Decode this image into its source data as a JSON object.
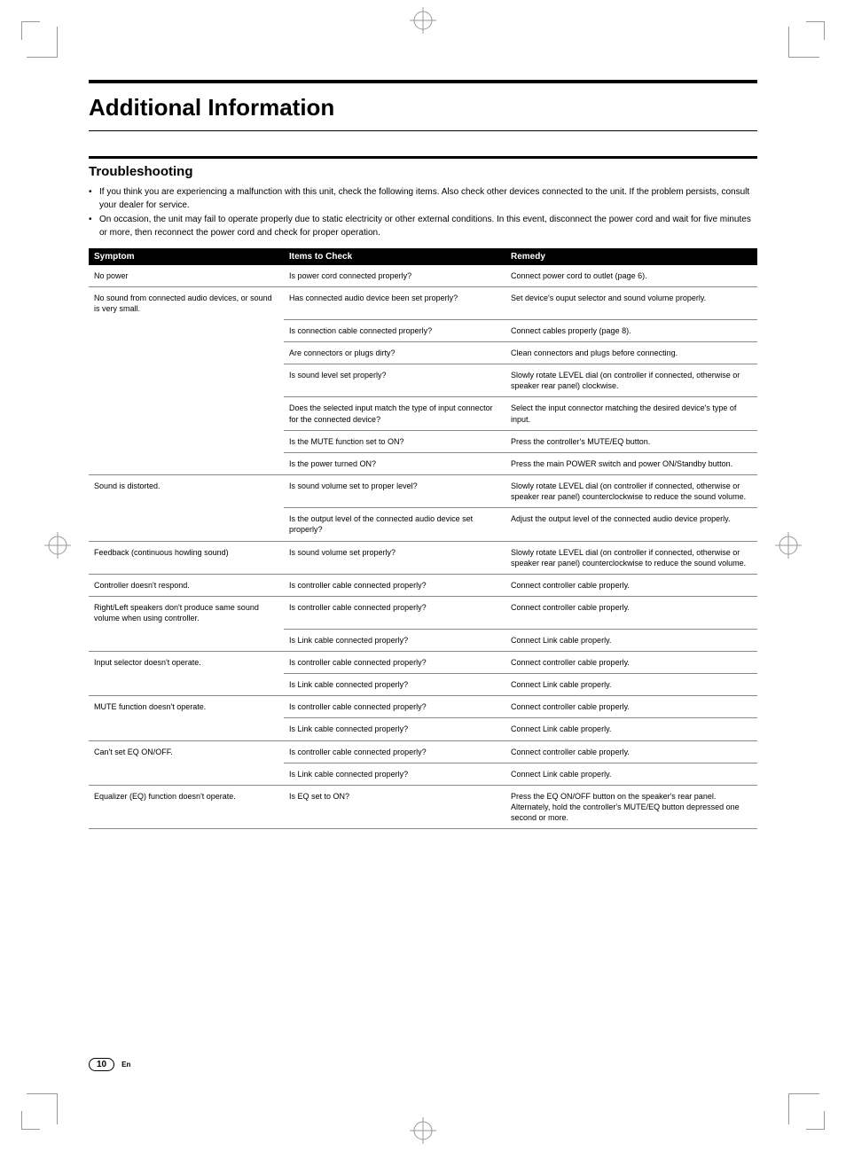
{
  "page": {
    "title": "Additional Information",
    "subtitle": "Troubleshooting",
    "bullets": [
      "If you think you are experiencing a malfunction with this unit, check the following items. Also check other devices connected to the unit. If the problem persists, consult your dealer for service.",
      "On occasion, the unit may fail to operate properly due to static electricity or other external conditions. In this event, disconnect the power cord and wait for five minutes or more, then reconnect the power cord and check for proper operation."
    ],
    "headers": {
      "symptom": "Symptom",
      "check": "Items to Check",
      "remedy": "Remedy"
    },
    "rows": [
      {
        "symptom": "No power",
        "check": "Is power cord connected properly?",
        "remedy": "Connect power cord to outlet (page 6).",
        "first": true,
        "last": true
      },
      {
        "symptom": "No sound from connected audio devices, or sound is very small.",
        "check": "Has connected audio device been set properly?",
        "remedy": "Set device's ouput selector and sound volume properly.",
        "first": true
      },
      {
        "symptom": "",
        "check": "Is connection cable connected properly?",
        "remedy": "Connect cables properly (page 8)."
      },
      {
        "symptom": "",
        "check": "Are connectors or plugs dirty?",
        "remedy": "Clean connectors and plugs before connecting."
      },
      {
        "symptom": "",
        "check": "Is sound level set properly?",
        "remedy": "Slowly rotate LEVEL dial (on controller if connected, otherwise or speaker rear panel) clockwise."
      },
      {
        "symptom": "",
        "check": "Does the selected input match the type of input connector for the connected device?",
        "remedy": "Select the input connector matching the desired device's type of input."
      },
      {
        "symptom": "",
        "check": "Is the MUTE function set to ON?",
        "remedy": "Press the controller's MUTE/EQ button."
      },
      {
        "symptom": "",
        "check": "Is the power turned ON?",
        "remedy": "Press the main POWER switch and power ON/Standby button.",
        "last": true
      },
      {
        "symptom": "Sound is distorted.",
        "check": "Is sound volume set to proper level?",
        "remedy": "Slowly rotate LEVEL dial (on controller if connected, otherwise or speaker rear panel) counterclockwise to reduce the sound volume.",
        "first": true
      },
      {
        "symptom": "",
        "check": "Is the output level of the connected audio device set properly?",
        "remedy": "Adjust the output level of the connected audio device properly.",
        "last": true
      },
      {
        "symptom": "Feedback (continuous howling sound)",
        "check": "Is sound volume set properly?",
        "remedy": "Slowly rotate LEVEL dial (on controller if connected, otherwise or speaker rear panel) counterclockwise to reduce the sound volume.",
        "first": true,
        "last": true
      },
      {
        "symptom": "Controller doesn't respond.",
        "check": "Is controller cable connected properly?",
        "remedy": "Connect controller cable properly.",
        "first": true,
        "last": true
      },
      {
        "symptom": "Right/Left speakers don't produce same sound volume when using controller.",
        "check": "Is controller cable connected properly?",
        "remedy": "Connect controller cable properly.",
        "first": true
      },
      {
        "symptom": "",
        "check": "Is Link cable connected properly?",
        "remedy": "Connect Link cable properly.",
        "last": true
      },
      {
        "symptom": "Input selector doesn't operate.",
        "check": "Is controller cable connected properly?",
        "remedy": "Connect controller cable properly.",
        "first": true
      },
      {
        "symptom": "",
        "check": "Is Link cable connected properly?",
        "remedy": "Connect Link cable properly.",
        "last": true
      },
      {
        "symptom": "MUTE function doesn't operate.",
        "check": "Is controller cable connected properly?",
        "remedy": "Connect controller cable properly.",
        "first": true
      },
      {
        "symptom": "",
        "check": "Is Link cable connected properly?",
        "remedy": "Connect Link cable properly.",
        "last": true
      },
      {
        "symptom": "Can't set EQ ON/OFF.",
        "check": "Is controller cable connected properly?",
        "remedy": "Connect controller cable properly.",
        "first": true
      },
      {
        "symptom": "",
        "check": "Is Link cable connected properly?",
        "remedy": "Connect Link cable properly.",
        "last": true
      },
      {
        "symptom": "Equalizer (EQ) function doesn't operate.",
        "check": "Is EQ set to ON?",
        "remedy": "Press the EQ ON/OFF button on the speaker's rear panel. Alternately, hold the controller's MUTE/EQ button depressed one second or more.",
        "first": true,
        "last": true
      }
    ],
    "page_number": "10",
    "lang": "En",
    "colors": {
      "bg": "#ffffff",
      "text": "#000000",
      "header_bg": "#000000",
      "header_fg": "#ffffff",
      "rule": "#888888"
    }
  }
}
